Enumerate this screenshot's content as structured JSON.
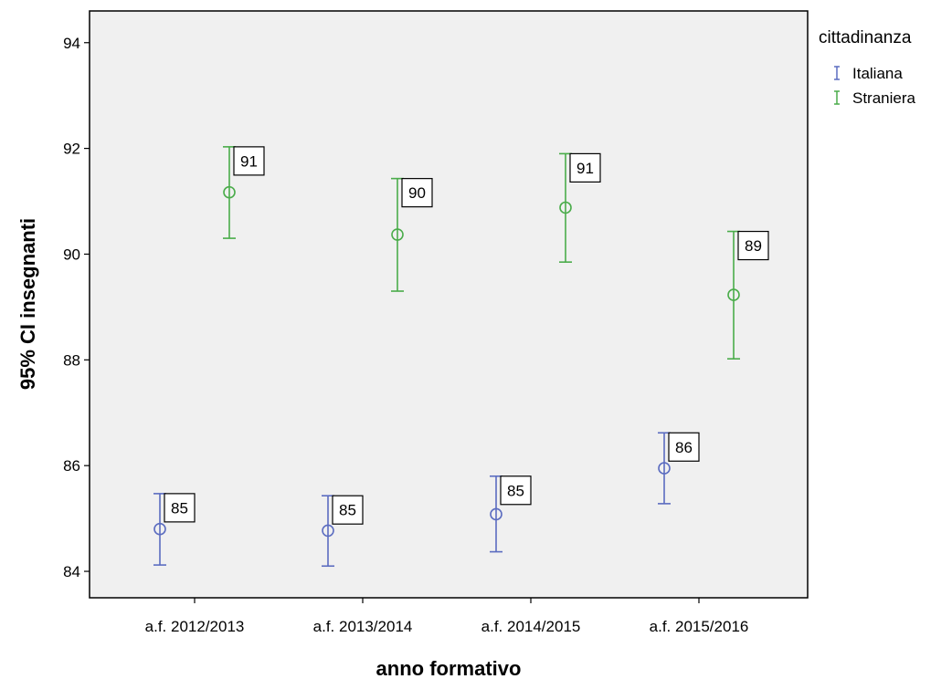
{
  "chart_data": {
    "type": "errorbar",
    "xlabel": "anno formativo",
    "ylabel": "95% CI insegnanti",
    "ylim": [
      83.5,
      94.6
    ],
    "yticks": [
      "84",
      "86",
      "88",
      "90",
      "92",
      "94"
    ],
    "categories": [
      "a.f. 2012/2013",
      "a.f. 2013/2014",
      "a.f. 2014/2015",
      "a.f. 2015/2016"
    ],
    "legend": {
      "title": "cittadinanza",
      "position": "right"
    },
    "grid": false,
    "series": [
      {
        "name": "Italiana",
        "color": "#5b6cc0",
        "mean": [
          84.8,
          84.77,
          85.08,
          85.95
        ],
        "lower": [
          84.12,
          84.1,
          84.37,
          85.28
        ],
        "upper": [
          85.47,
          85.43,
          85.8,
          86.62
        ],
        "labels": [
          "85",
          "85",
          "85",
          "86"
        ]
      },
      {
        "name": "Straniera",
        "color": "#4aac4a",
        "mean": [
          91.17,
          90.37,
          90.88,
          89.23
        ],
        "lower": [
          90.3,
          89.3,
          89.85,
          88.02
        ],
        "upper": [
          92.03,
          91.43,
          91.9,
          90.43
        ],
        "labels": [
          "91",
          "90",
          "91",
          "89"
        ]
      }
    ]
  }
}
